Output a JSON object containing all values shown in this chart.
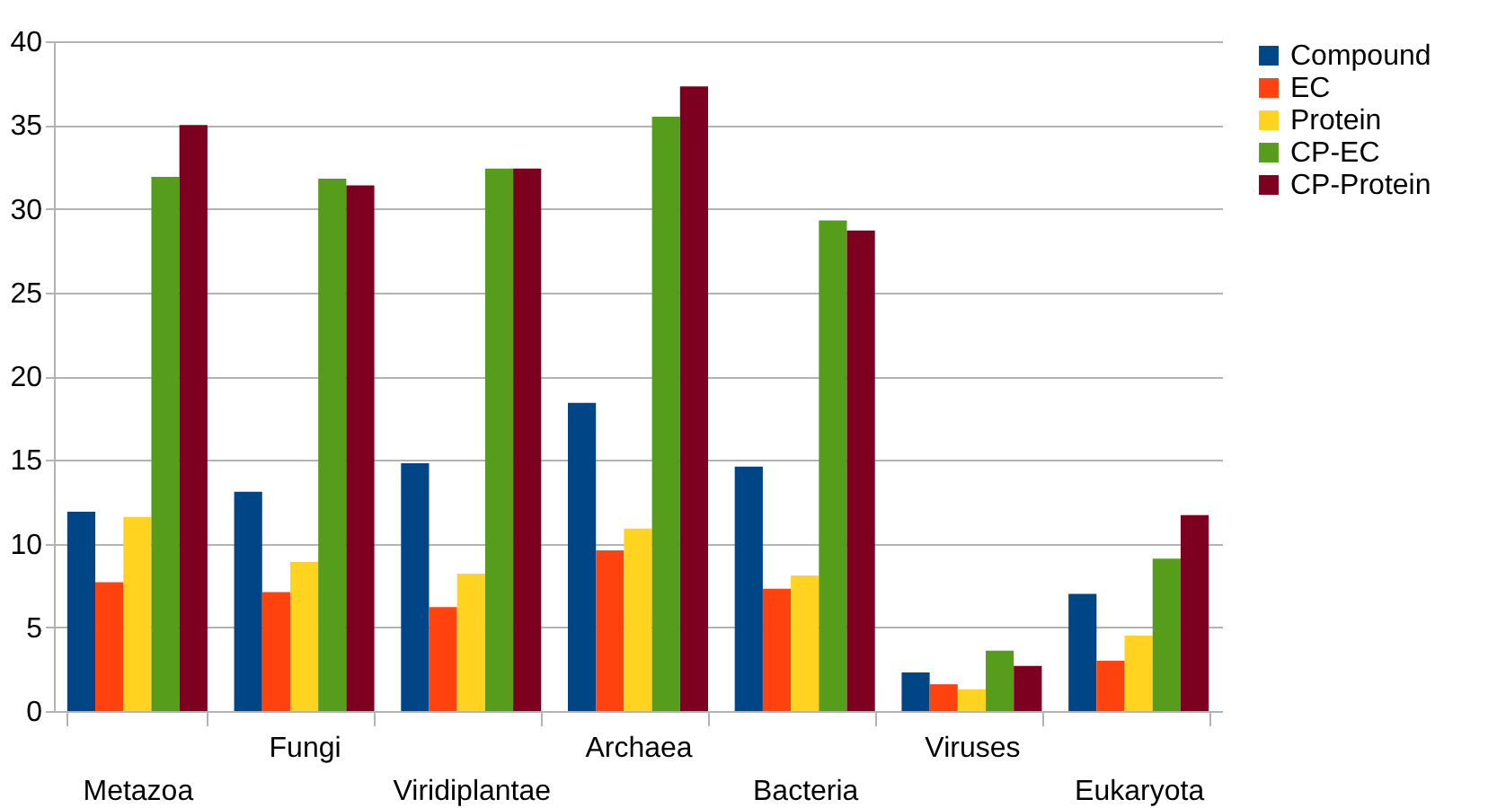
{
  "chart_data": {
    "type": "bar",
    "categories": [
      "Metazoa",
      "Fungi",
      "Viridiplantae",
      "Archaea",
      "Bacteria",
      "Viruses",
      "Eukaryota"
    ],
    "series": [
      {
        "name": "Compound",
        "color": "#004586",
        "values": [
          11.9,
          13.1,
          14.8,
          18.4,
          14.6,
          2.3,
          7.0
        ]
      },
      {
        "name": "EC",
        "color": "#ff420e",
        "values": [
          7.7,
          7.1,
          6.2,
          9.6,
          7.3,
          1.6,
          3.0
        ]
      },
      {
        "name": "Protein",
        "color": "#ffd320",
        "values": [
          11.6,
          8.9,
          8.2,
          10.9,
          8.1,
          1.3,
          4.5
        ]
      },
      {
        "name": "CP-EC",
        "color": "#579d1c",
        "values": [
          31.9,
          31.8,
          32.4,
          35.5,
          29.3,
          3.6,
          9.1
        ]
      },
      {
        "name": "CP-Protein",
        "color": "#7e0021",
        "values": [
          35.0,
          31.4,
          32.4,
          37.3,
          28.7,
          2.7,
          11.7
        ]
      }
    ],
    "ylim": [
      0,
      40
    ],
    "yticks": [
      0,
      5,
      10,
      15,
      20,
      25,
      30,
      35,
      40
    ],
    "grid": "y",
    "legend": "right"
  }
}
